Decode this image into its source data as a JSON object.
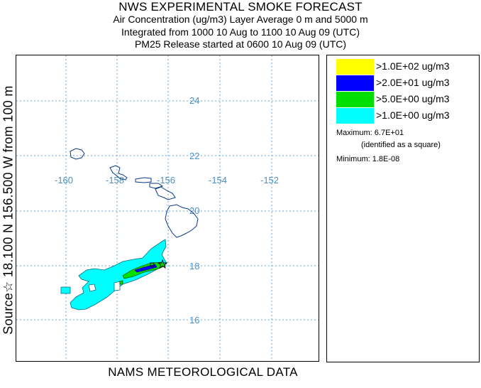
{
  "header": {
    "title": "NWS EXPERIMENTAL SMOKE FORECAST",
    "line1": "Air Concentration (ug/m3) Layer Average    0 m and  5000 m",
    "line2": "Integrated from 1000 10 Aug to 1100 10 Aug 09 (UTC)",
    "line3": "PM25 Release started at 0600 10 Aug 09 (UTC)"
  },
  "map": {
    "side_label": "Source☆ 18.100  N  156.500  W      from  100 m",
    "bottom_label": "NAMS METEOROLOGICAL DATA",
    "lat_labels": [
      "24",
      "22",
      "20",
      "18",
      "16"
    ],
    "lon_labels": [
      "-160",
      "-158",
      "-156",
      "-154",
      "-152"
    ],
    "grid_color": "#6aa6d8",
    "coast_color": "#0a3a8a"
  },
  "legend": {
    "items": [
      {
        "label": ">1.0E+02 ug/m3",
        "color": "#ffff00"
      },
      {
        "label": ">2.0E+01 ug/m3",
        "color": "#0000ff"
      },
      {
        "label": ">5.0E+00 ug/m3",
        "color": "#00e000"
      },
      {
        "label": ">1.0E+00 ug/m3",
        "color": "#00ffff"
      }
    ],
    "maximum": "Maximum: 6.7E+01",
    "maximum_note": "(identified as a square)",
    "minimum": "Minimum: 1.8E-08"
  }
}
